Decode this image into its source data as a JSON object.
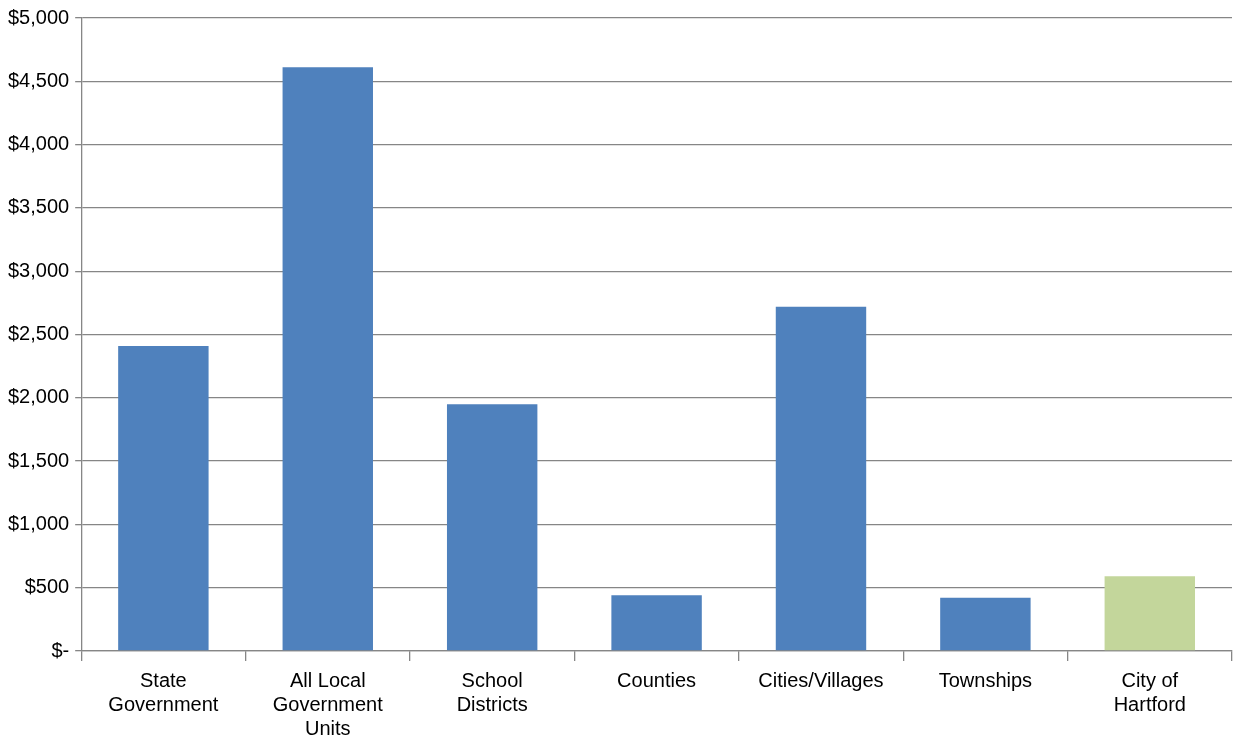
{
  "chart_data": {
    "type": "bar",
    "categories": [
      "State Government",
      "All Local Government Units",
      "School Districts",
      "Counties",
      "Cities/Villages",
      "Townships",
      "City of Hartford"
    ],
    "values": [
      2410,
      4610,
      1950,
      440,
      2720,
      420,
      590
    ],
    "colors": [
      "#4f81bd",
      "#4f81bd",
      "#4f81bd",
      "#4f81bd",
      "#4f81bd",
      "#4f81bd",
      "#c3d69b"
    ],
    "ylim": [
      0,
      5000
    ],
    "yticks": [
      {
        "value": 0,
        "label": "$-"
      },
      {
        "value": 500,
        "label": "$500"
      },
      {
        "value": 1000,
        "label": "$1,000"
      },
      {
        "value": 1500,
        "label": "$1,500"
      },
      {
        "value": 2000,
        "label": "$2,000"
      },
      {
        "value": 2500,
        "label": "$2,500"
      },
      {
        "value": 3000,
        "label": "$3,000"
      },
      {
        "value": 3500,
        "label": "$3,500"
      },
      {
        "value": 4000,
        "label": "$4,000"
      },
      {
        "value": 4500,
        "label": "$4,500"
      },
      {
        "value": 5000,
        "label": "$5,000"
      }
    ],
    "grid": "y",
    "legend": false
  }
}
